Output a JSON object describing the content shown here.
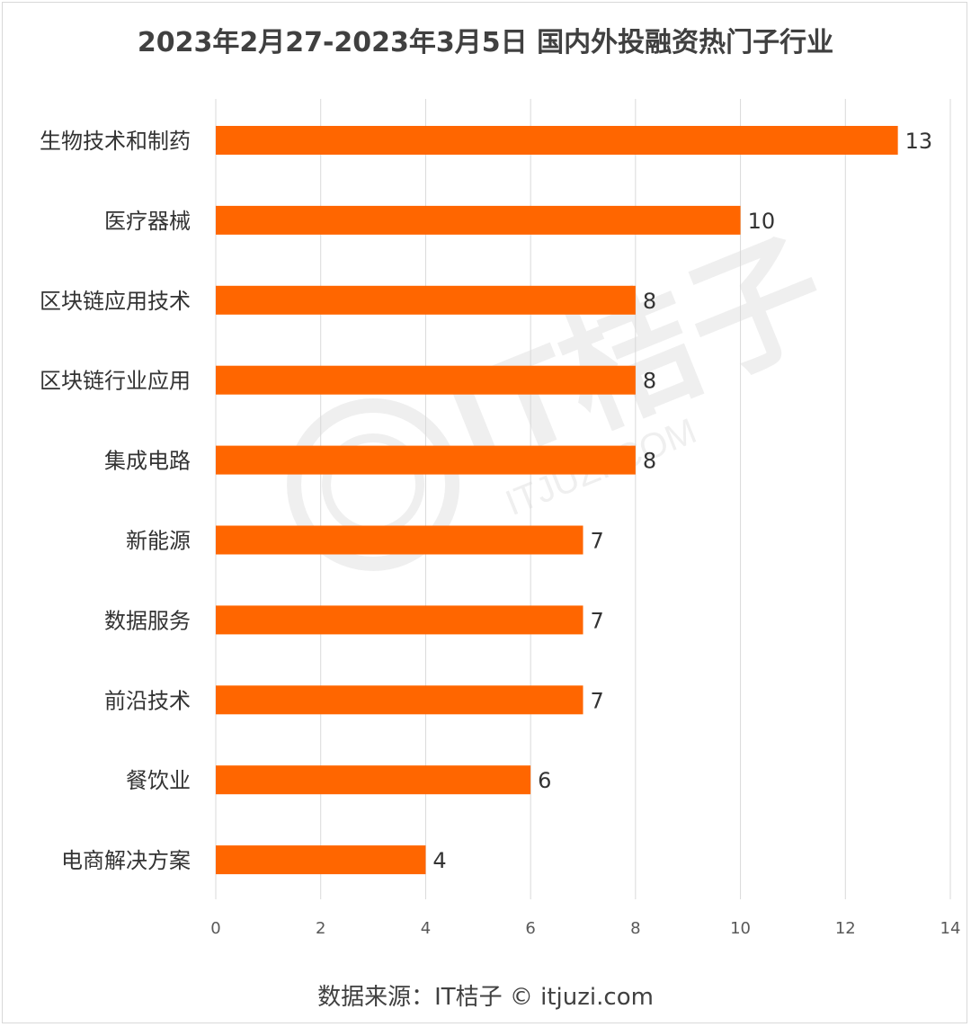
{
  "page": {
    "title": "2023年2月27-2023年3月5日 国内外投融资热门子行业",
    "footer": "数据来源：IT桔子 © itjuzi.com"
  },
  "watermark": {
    "text": "IT桔子",
    "subtext": "ITJUZI.COM"
  },
  "colors": {
    "bar": "#ff6600",
    "grid": "#d9d9d9",
    "text": "#333333"
  },
  "chart_data": {
    "type": "bar",
    "orientation": "horizontal",
    "categories": [
      "生物技术和制药",
      "医疗器械",
      "区块链应用技术",
      "区块链行业应用",
      "集成电路",
      "新能源",
      "数据服务",
      "前沿技术",
      "餐饮业",
      "电商解决方案"
    ],
    "values": [
      13,
      10,
      8,
      8,
      8,
      7,
      7,
      7,
      6,
      4
    ],
    "xlim": [
      0,
      14
    ],
    "xticks": [
      0,
      2,
      4,
      6,
      8,
      10,
      12,
      14
    ],
    "grid": true,
    "data_labels": true,
    "legend": "none"
  }
}
